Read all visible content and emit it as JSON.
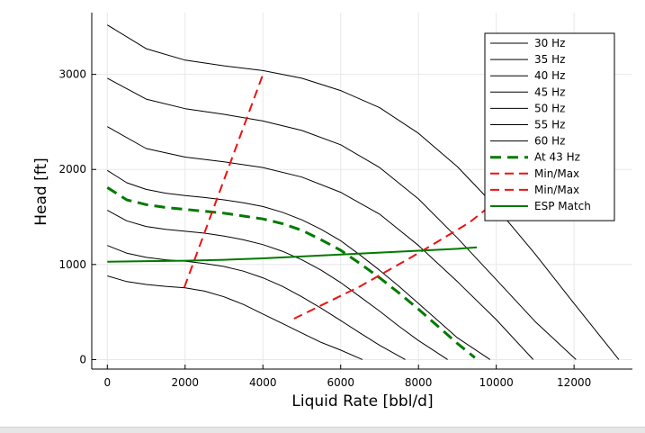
{
  "chart_data": {
    "type": "line",
    "title": "",
    "xlabel": "Liquid Rate [bbl/d]",
    "ylabel": "Head [ft]",
    "xlim": [
      -400,
      13500
    ],
    "ylim": [
      -100,
      3650
    ],
    "xticks": [
      0,
      2000,
      4000,
      6000,
      8000,
      10000,
      12000
    ],
    "yticks": [
      0,
      1000,
      2000,
      3000
    ],
    "xtick_labels": [
      "0",
      "2000",
      "4000",
      "6000",
      "8000",
      "10000",
      "12000"
    ],
    "ytick_labels": [
      "0",
      "1000",
      "2000",
      "3000"
    ],
    "grid": true,
    "legend_position": "top-right",
    "series": [
      {
        "name": "30 Hz",
        "color": "#000000",
        "style": "solid",
        "width": 1,
        "x": [
          0,
          500,
          1000,
          1500,
          2000,
          2500,
          3000,
          3500,
          4000,
          4500,
          5000,
          5500,
          6000,
          6560
        ],
        "y": [
          880,
          820,
          790,
          770,
          755,
          720,
          660,
          580,
          480,
          380,
          280,
          180,
          100,
          0
        ]
      },
      {
        "name": "35 Hz",
        "color": "#000000",
        "style": "solid",
        "width": 1,
        "x": [
          0,
          500,
          1000,
          1500,
          2000,
          2500,
          3000,
          3500,
          4000,
          4500,
          5000,
          5500,
          6000,
          6500,
          7000,
          7660
        ],
        "y": [
          1200,
          1120,
          1075,
          1050,
          1035,
          1010,
          980,
          930,
          860,
          770,
          660,
          540,
          410,
          280,
          150,
          0
        ]
      },
      {
        "name": "40 Hz",
        "color": "#000000",
        "style": "solid",
        "width": 1,
        "x": [
          0,
          500,
          1000,
          1500,
          2000,
          2500,
          3000,
          3500,
          4000,
          4500,
          5000,
          5500,
          6000,
          6500,
          7000,
          7500,
          8000,
          8750
        ],
        "y": [
          1570,
          1460,
          1400,
          1370,
          1350,
          1330,
          1300,
          1260,
          1210,
          1140,
          1050,
          940,
          810,
          660,
          510,
          350,
          200,
          0
        ]
      },
      {
        "name": "45 Hz",
        "color": "#000000",
        "style": "solid",
        "width": 1,
        "x": [
          0,
          500,
          1000,
          1500,
          2000,
          2500,
          3000,
          3500,
          4000,
          4500,
          5000,
          5500,
          6000,
          6500,
          7000,
          7500,
          8000,
          8500,
          9000,
          9840
        ],
        "y": [
          1990,
          1860,
          1790,
          1750,
          1725,
          1705,
          1680,
          1650,
          1610,
          1550,
          1470,
          1370,
          1250,
          1100,
          940,
          770,
          590,
          410,
          230,
          0
        ]
      },
      {
        "name": "50 Hz",
        "color": "#000000",
        "style": "solid",
        "width": 1,
        "x": [
          0,
          1000,
          2000,
          3000,
          4000,
          5000,
          6000,
          7000,
          8000,
          9000,
          10000,
          10950
        ],
        "y": [
          2450,
          2220,
          2130,
          2080,
          2020,
          1920,
          1760,
          1530,
          1200,
          820,
          420,
          0
        ]
      },
      {
        "name": "55 Hz",
        "color": "#000000",
        "style": "solid",
        "width": 1,
        "x": [
          0,
          1000,
          2000,
          3000,
          4000,
          5000,
          6000,
          7000,
          8000,
          9000,
          10000,
          11000,
          12050
        ],
        "y": [
          2960,
          2740,
          2640,
          2580,
          2510,
          2410,
          2260,
          2020,
          1690,
          1280,
          840,
          400,
          0
        ]
      },
      {
        "name": "60 Hz",
        "color": "#000000",
        "style": "solid",
        "width": 1,
        "x": [
          0,
          1000,
          2000,
          3000,
          4000,
          5000,
          6000,
          7000,
          8000,
          9000,
          10000,
          11000,
          12000,
          13150
        ],
        "y": [
          3520,
          3270,
          3150,
          3090,
          3040,
          2960,
          2830,
          2650,
          2380,
          2030,
          1600,
          1110,
          590,
          0
        ]
      },
      {
        "name": "At 43 Hz",
        "color": "#007a00",
        "style": "dashed",
        "width": 3,
        "x": [
          0,
          500,
          1000,
          1500,
          2000,
          2500,
          3000,
          3500,
          4000,
          4500,
          5000,
          5500,
          6000,
          6500,
          7000,
          7500,
          8000,
          8500,
          9000,
          9450
        ],
        "y": [
          1810,
          1680,
          1630,
          1600,
          1580,
          1560,
          1540,
          1510,
          1480,
          1430,
          1360,
          1260,
          1150,
          1010,
          860,
          700,
          530,
          350,
          170,
          20
        ]
      },
      {
        "name": "Min/Max",
        "color": "#ee1111",
        "style": "dashed",
        "width": 2,
        "x": [
          1980,
          4020
        ],
        "y": [
          760,
          3020
        ]
      },
      {
        "name": "Min/Max",
        "color": "#ee1111",
        "style": "dashed",
        "width": 2,
        "x": [
          4800,
          6500,
          8000,
          9300,
          9950
        ],
        "y": [
          430,
          770,
          1120,
          1440,
          1650
        ]
      },
      {
        "name": "ESP Match",
        "color": "#007a00",
        "style": "solid",
        "width": 2,
        "x": [
          0,
          1000,
          2000,
          3000,
          4000,
          5000,
          6000,
          7000,
          8000,
          9000,
          9500
        ],
        "y": [
          1030,
          1035,
          1040,
          1050,
          1065,
          1085,
          1105,
          1125,
          1145,
          1165,
          1180
        ]
      }
    ]
  }
}
